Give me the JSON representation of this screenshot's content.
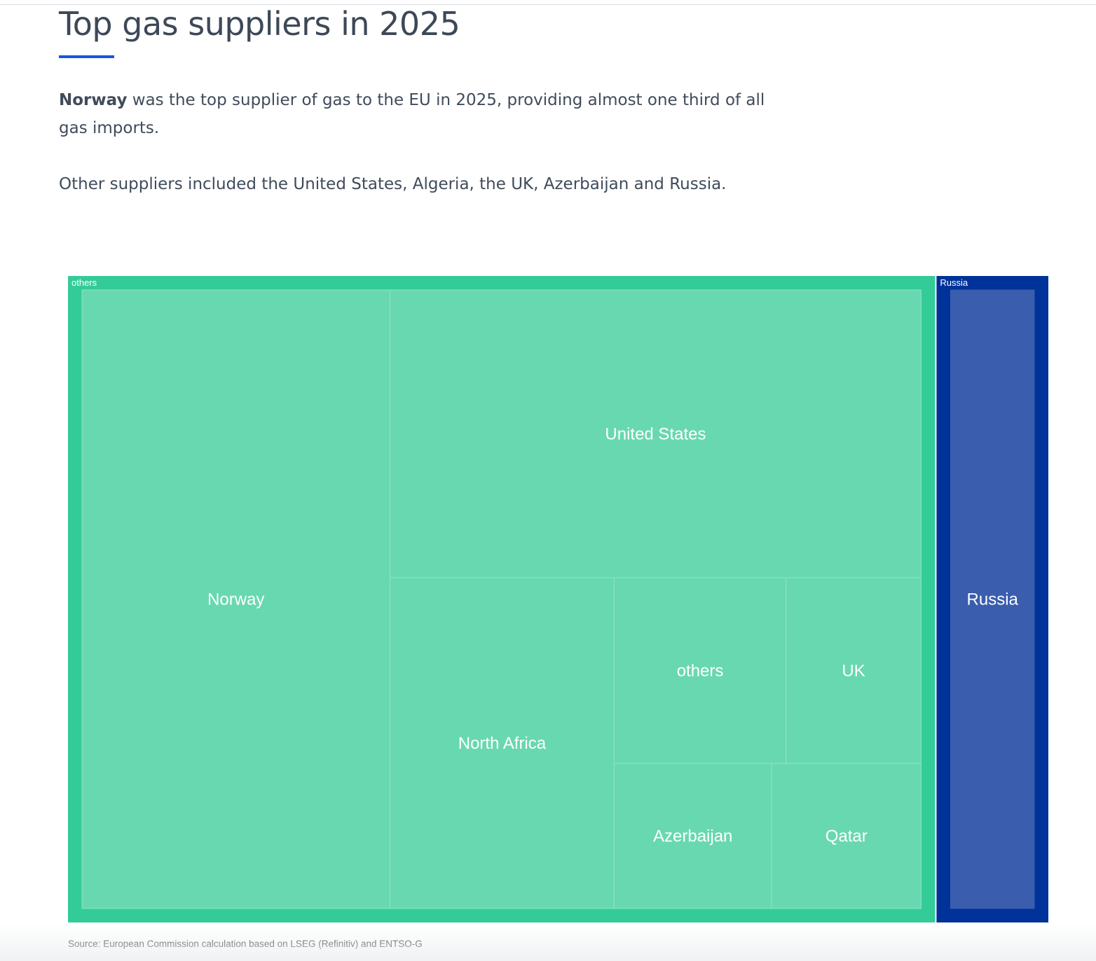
{
  "header": {
    "title": "Top gas suppliers in 2025"
  },
  "intro": {
    "p1_bold": "Norway",
    "p1_rest": " was the top supplier of gas to the EU in 2025, providing almost one third of all gas imports.",
    "p2": "Other suppliers included the United States, Algeria, the UK, Azerbaijan and Russia."
  },
  "footer": {
    "source": "Source: European Commission calculation based on LSEG (Refinitiv) and ENTSO-G"
  },
  "colors": {
    "others_group_border": "#33cc99",
    "others_leaf": "#68d8b0",
    "russia_group_border": "#003399",
    "russia_leaf": "#3b5dae",
    "title_underline": "#1458e0",
    "leaf_divider": "#8fe3c7"
  },
  "chart_data": {
    "type": "treemap",
    "groups": [
      {
        "label": "others",
        "color": "#33cc99",
        "children": [
          {
            "label": "Norway",
            "value": 0.334
          },
          {
            "label": "United States",
            "value": 0.268
          },
          {
            "label": "North Africa",
            "value": 0.13
          },
          {
            "label": "others",
            "value": 0.056
          },
          {
            "label": "UK",
            "value": 0.044
          },
          {
            "label": "Azerbaijan",
            "value": 0.04
          },
          {
            "label": "Qatar",
            "value": 0.038
          }
        ]
      },
      {
        "label": "Russia",
        "color": "#003399",
        "children": [
          {
            "label": "Russia",
            "value": 0.118
          }
        ]
      }
    ]
  }
}
